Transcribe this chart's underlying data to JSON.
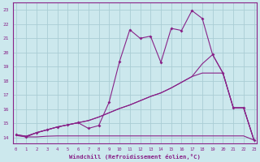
{
  "xlabel": "Windchill (Refroidissement éolien,°C)",
  "bg_color": "#cce8ed",
  "grid_color": "#aacdd4",
  "line_color": "#882288",
  "x_ticks": [
    0,
    1,
    2,
    3,
    4,
    5,
    6,
    7,
    8,
    9,
    10,
    11,
    12,
    13,
    14,
    15,
    16,
    17,
    18,
    19,
    20,
    21,
    22,
    23
  ],
  "y_ticks": [
    14,
    15,
    16,
    17,
    18,
    19,
    20,
    21,
    22,
    23
  ],
  "xlim": [
    -0.3,
    23.3
  ],
  "ylim": [
    13.6,
    23.5
  ],
  "line1_x": [
    0,
    1,
    2,
    3,
    4,
    5,
    6,
    7,
    8,
    9,
    10,
    11,
    12,
    13,
    14,
    15,
    16,
    17,
    18,
    19,
    20,
    21,
    22,
    23
  ],
  "line1_y": [
    14.15,
    14.05,
    14.05,
    14.1,
    14.12,
    14.12,
    14.12,
    14.12,
    14.12,
    14.12,
    14.12,
    14.12,
    14.12,
    14.12,
    14.12,
    14.12,
    14.12,
    14.12,
    14.12,
    14.12,
    14.12,
    14.12,
    14.12,
    13.82
  ],
  "line2_x": [
    0,
    1,
    2,
    3,
    4,
    5,
    6,
    7,
    8,
    9,
    10,
    11,
    12,
    13,
    14,
    15,
    16,
    17,
    18,
    19,
    20,
    21,
    22,
    23
  ],
  "line2_y": [
    14.2,
    14.1,
    14.35,
    14.55,
    14.75,
    14.9,
    15.05,
    15.2,
    15.45,
    15.75,
    16.05,
    16.3,
    16.6,
    16.9,
    17.15,
    17.5,
    17.9,
    18.3,
    18.55,
    18.55,
    18.55,
    16.1,
    16.1,
    13.82
  ],
  "line3_x": [
    0,
    1,
    2,
    3,
    4,
    5,
    6,
    7,
    8,
    9,
    10,
    11,
    12,
    13,
    14,
    15,
    16,
    17,
    18,
    19,
    20,
    21,
    22,
    23
  ],
  "line3_y": [
    14.2,
    14.1,
    14.35,
    14.55,
    14.75,
    14.9,
    15.05,
    15.2,
    15.45,
    15.75,
    16.05,
    16.3,
    16.6,
    16.9,
    17.15,
    17.5,
    17.9,
    18.3,
    19.2,
    19.85,
    18.55,
    16.1,
    16.1,
    13.82
  ],
  "line4_x": [
    0,
    1,
    2,
    3,
    4,
    5,
    6,
    7,
    8,
    9,
    10,
    11,
    12,
    13,
    14,
    15,
    16,
    17,
    18,
    19,
    20,
    21,
    22,
    23
  ],
  "line4_y": [
    14.2,
    14.05,
    14.35,
    14.55,
    14.75,
    14.9,
    15.05,
    14.65,
    14.85,
    16.5,
    19.35,
    21.6,
    21.0,
    21.15,
    19.3,
    21.7,
    21.55,
    22.95,
    22.4,
    19.85,
    18.55,
    16.1,
    16.1,
    13.82
  ]
}
